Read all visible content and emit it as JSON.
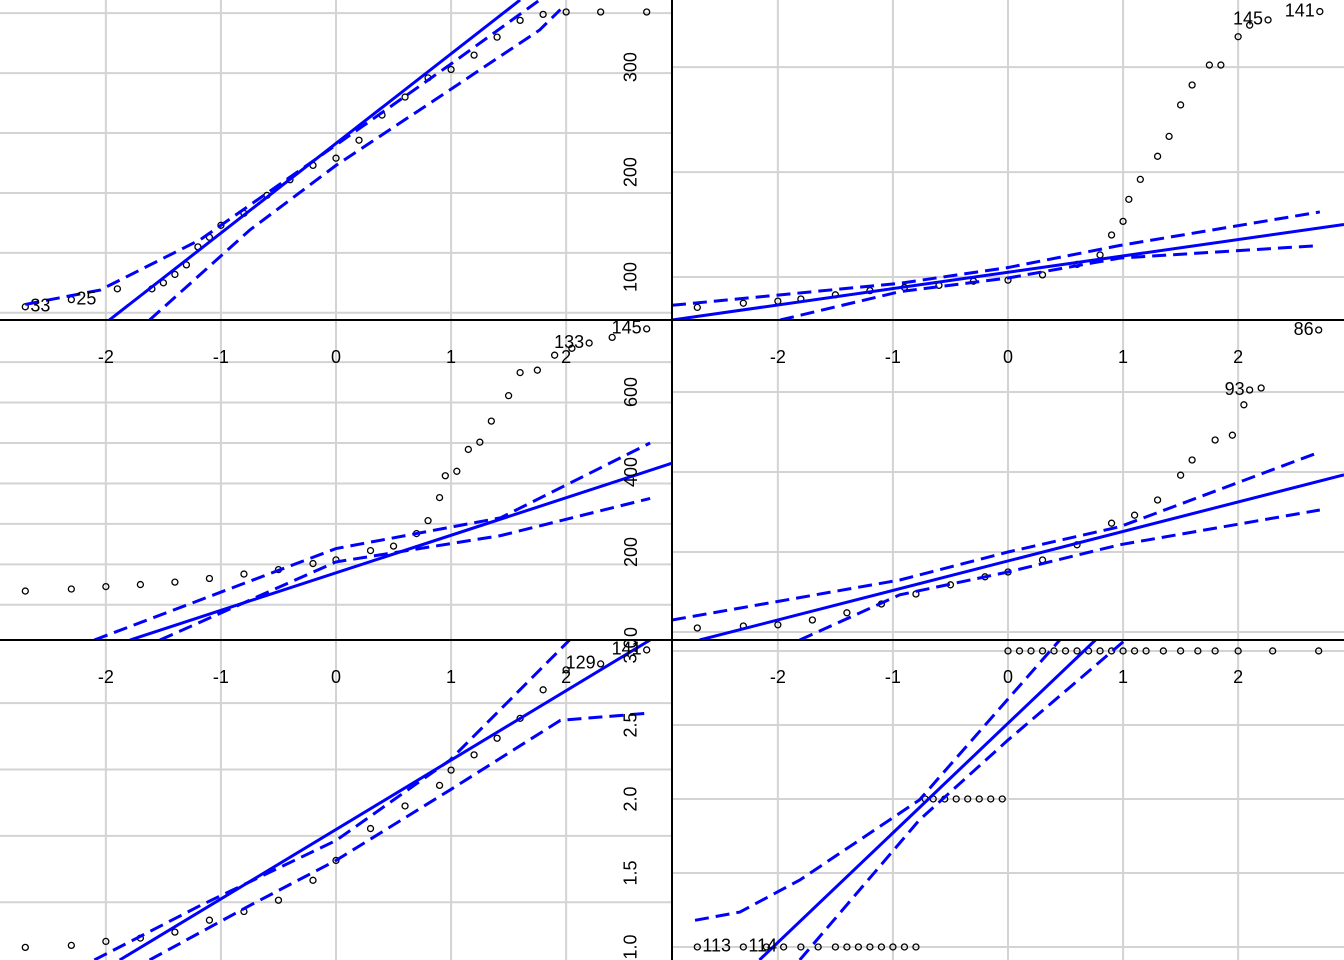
{
  "chart_data": [
    {
      "type": "qq",
      "xlim": [
        -2.92,
        2.92
      ],
      "ylim": [
        44,
        311
      ],
      "xticks": [
        -2,
        -1,
        0,
        1,
        2
      ],
      "yticks": [
        50,
        100,
        150,
        200,
        250,
        300
      ],
      "show_xtick_labels": true,
      "show_ytick_labels": false,
      "grid": true,
      "point_color": "#000000",
      "line_color": "#0000ff",
      "x": [
        -2.7,
        -2.3,
        -1.9,
        -1.6,
        -1.5,
        -1.4,
        -1.3,
        -1.2,
        -1.1,
        -1.0,
        -0.8,
        -0.6,
        -0.4,
        -0.2,
        0,
        0.2,
        0.4,
        0.6,
        0.8,
        1.0,
        1.2,
        1.4,
        1.6,
        1.8,
        2.0,
        2.3,
        2.7
      ],
      "values": [
        55,
        61,
        70,
        70,
        75,
        82,
        90,
        105,
        113,
        123,
        133,
        148,
        161,
        173,
        179,
        194,
        215,
        230,
        246,
        253,
        265,
        280,
        294,
        299,
        301,
        301,
        301
      ],
      "point_labels": [
        "33",
        "25",
        null,
        null,
        null,
        null,
        null,
        null,
        null,
        null,
        null,
        null,
        null,
        null,
        null,
        null,
        null,
        null,
        null,
        null,
        null,
        null,
        null,
        null,
        null,
        null,
        null
      ],
      "ref_line": {
        "x": [
          -1.97,
          1.6
        ],
        "values": [
          44,
          311
        ]
      },
      "envelope_upper": {
        "x": [
          -2.7,
          -2.05,
          -1.18,
          0,
          0.99,
          1.77
        ],
        "values": [
          57,
          69,
          111,
          190,
          257,
          311
        ]
      },
      "envelope_lower": {
        "x": [
          -1.62,
          -0.75,
          0,
          0.99,
          1.77,
          1.95
        ],
        "values": [
          44,
          119,
          173,
          236,
          286,
          303
        ]
      }
    },
    {
      "type": "qq",
      "xlim": [
        -2.92,
        2.92
      ],
      "ylim": [
        59,
        364
      ],
      "xticks": [
        -2,
        -1,
        0,
        1,
        2
      ],
      "yticks": [
        100,
        200,
        300
      ],
      "show_xtick_labels": true,
      "show_ytick_labels": true,
      "grid": true,
      "point_color": "#000000",
      "line_color": "#0000ff",
      "x": [
        -2.7,
        -2.3,
        -2.0,
        -1.8,
        -1.5,
        -1.2,
        -0.9,
        -0.6,
        -0.3,
        0,
        0.3,
        0.6,
        0.8,
        0.9,
        1.0,
        1.05,
        1.15,
        1.3,
        1.4,
        1.5,
        1.6,
        1.75,
        1.85,
        2.0,
        2.1,
        2.26,
        2.71
      ],
      "values": [
        71,
        75,
        77,
        79,
        83,
        87,
        90,
        92,
        96,
        97,
        102,
        112,
        121,
        140,
        153,
        174,
        193,
        215,
        234,
        264,
        283,
        302,
        302,
        329,
        340,
        345,
        353
      ],
      "point_labels": [
        null,
        null,
        null,
        null,
        null,
        null,
        null,
        null,
        null,
        null,
        null,
        null,
        null,
        null,
        null,
        null,
        null,
        null,
        null,
        null,
        null,
        null,
        null,
        null,
        null,
        "145",
        "141"
      ],
      "ref_line": {
        "x": [
          -2.92,
          2.92
        ],
        "values": [
          59,
          150
        ]
      },
      "envelope_upper": {
        "x": [
          -2.92,
          -0.94,
          0,
          0.97,
          2.71
        ],
        "values": [
          73,
          94,
          109,
          130,
          162
        ]
      },
      "envelope_lower": {
        "x": [
          -1.98,
          -0.94,
          0,
          0.97,
          2.71
        ],
        "values": [
          59,
          86,
          99,
          118,
          130
        ]
      }
    },
    {
      "type": "qq",
      "xlim": [
        -2.92,
        2.92
      ],
      "ylim": [
        13,
        804
      ],
      "xticks": [
        -2,
        -1,
        0,
        1,
        2
      ],
      "yticks": [
        100,
        200,
        300,
        400,
        500,
        600,
        700
      ],
      "show_xtick_labels": true,
      "show_ytick_labels": false,
      "grid": true,
      "point_color": "#000000",
      "line_color": "#0000ff",
      "x": [
        -2.7,
        -2.3,
        -2.0,
        -1.7,
        -1.4,
        -1.1,
        -0.8,
        -0.5,
        -0.2,
        0,
        0.3,
        0.5,
        0.7,
        0.8,
        0.9,
        0.95,
        1.05,
        1.15,
        1.25,
        1.35,
        1.5,
        1.6,
        1.75,
        1.9,
        2.05,
        2.2,
        2.4,
        2.7
      ],
      "values": [
        134,
        139,
        145,
        150,
        156,
        165,
        176,
        187,
        202,
        211,
        234,
        245,
        276,
        308,
        365,
        419,
        430,
        484,
        502,
        554,
        617,
        674,
        680,
        717,
        734,
        747,
        761,
        782
      ],
      "point_labels": [
        null,
        null,
        null,
        null,
        null,
        null,
        null,
        null,
        null,
        null,
        null,
        null,
        null,
        null,
        null,
        null,
        null,
        null,
        null,
        null,
        null,
        null,
        null,
        null,
        null,
        "133",
        null,
        "145"
      ],
      "ref_line": {
        "x": [
          -1.79,
          2.92
        ],
        "values": [
          13,
          450
        ]
      },
      "envelope_upper": {
        "x": [
          -2.1,
          0,
          1.43,
          2.73
        ],
        "values": [
          13,
          239,
          315,
          500
        ]
      },
      "envelope_lower": {
        "x": [
          -1.53,
          0,
          1.43,
          2.73
        ],
        "values": [
          13,
          206,
          271,
          363
        ]
      }
    },
    {
      "type": "qq",
      "xlim": [
        -2.92,
        2.92
      ],
      "ylim": [
        -20,
        780
      ],
      "xticks": [
        -2,
        -1,
        0,
        1,
        2
      ],
      "yticks": [
        0,
        200,
        400,
        600
      ],
      "show_xtick_labels": true,
      "show_ytick_labels": true,
      "grid": true,
      "point_color": "#000000",
      "line_color": "#0000ff",
      "x": [
        -2.7,
        -2.3,
        -2.0,
        -1.7,
        -1.4,
        -1.1,
        -0.8,
        -0.5,
        -0.2,
        0,
        0.3,
        0.6,
        0.9,
        1.1,
        1.3,
        1.5,
        1.6,
        1.8,
        1.95,
        2.05,
        2.1,
        2.2,
        2.7
      ],
      "values": [
        10,
        15,
        18,
        30,
        48,
        70,
        95,
        118,
        138,
        150,
        180,
        218,
        272,
        292,
        330,
        392,
        430,
        480,
        492,
        568,
        605,
        610,
        755
      ],
      "point_labels": [
        null,
        null,
        null,
        null,
        null,
        null,
        null,
        null,
        null,
        null,
        null,
        null,
        null,
        null,
        null,
        null,
        null,
        null,
        null,
        null,
        "93",
        null,
        "86"
      ],
      "ref_line": {
        "x": [
          -2.68,
          2.92
        ],
        "values": [
          -20,
          393
        ]
      },
      "envelope_upper": {
        "x": [
          -2.92,
          -0.94,
          0,
          0.97,
          2.71
        ],
        "values": [
          30,
          130,
          200,
          263,
          450
        ]
      },
      "envelope_lower": {
        "x": [
          -1.81,
          -0.94,
          0,
          0.97,
          2.71
        ],
        "values": [
          -20,
          93,
          150,
          218,
          305
        ]
      }
    },
    {
      "type": "qq",
      "xlim": [
        -2.92,
        2.92
      ],
      "ylim": [
        4.13,
        8.95
      ],
      "xticks": [
        -2,
        -1,
        0,
        1,
        2
      ],
      "yticks": [
        5,
        6,
        7,
        8
      ],
      "show_xtick_labels": false,
      "show_ytick_labels": false,
      "grid": true,
      "point_color": "#000000",
      "line_color": "#0000ff",
      "x": [
        -2.7,
        -2.3,
        -2.0,
        -1.7,
        -1.4,
        -1.1,
        -0.8,
        -0.5,
        -0.2,
        0,
        0.3,
        0.6,
        0.9,
        1.0,
        1.2,
        1.4,
        1.6,
        1.8,
        2.0,
        2.3,
        2.7
      ],
      "values": [
        4.32,
        4.35,
        4.41,
        4.46,
        4.55,
        4.73,
        4.86,
        5.03,
        5.33,
        5.63,
        6.11,
        6.45,
        6.76,
        6.99,
        7.22,
        7.47,
        7.77,
        8.2,
        8.5,
        8.59,
        8.8
      ],
      "point_labels": [
        null,
        null,
        null,
        null,
        null,
        null,
        null,
        null,
        null,
        null,
        null,
        null,
        null,
        null,
        null,
        null,
        null,
        null,
        null,
        "129",
        "141"
      ],
      "ref_line": {
        "x": [
          -1.88,
          2.73
        ],
        "values": [
          4.13,
          8.95
        ]
      },
      "envelope_upper": {
        "x": [
          -2.1,
          -1.18,
          0,
          0.99,
          2.03
        ],
        "values": [
          4.13,
          4.95,
          5.93,
          7.14,
          8.95
        ]
      },
      "envelope_lower": {
        "x": [
          -1.62,
          -0.75,
          0,
          0.99,
          1.95,
          2.73
        ],
        "values": [
          4.13,
          4.95,
          5.63,
          6.69,
          7.74,
          7.85
        ]
      }
    },
    {
      "type": "qq",
      "xlim": [
        -2.92,
        2.92
      ],
      "ylim": [
        0.912,
        3.074
      ],
      "xticks": [
        -2,
        -1,
        0,
        1,
        2
      ],
      "yticks": [
        {
          "value": 1,
          "label": "1.0"
        },
        {
          "value": 1.5,
          "label": "1.5"
        },
        {
          "value": 2,
          "label": "2.0"
        },
        {
          "value": 2.5,
          "label": "2.5"
        },
        {
          "value": 3,
          "label": "3.0"
        }
      ],
      "show_xtick_labels": false,
      "show_ytick_labels": true,
      "grid": true,
      "point_color": "#000000",
      "line_color": "#0000ff",
      "x": [
        -2.7,
        -2.3,
        -2.1,
        -1.95,
        -1.8,
        -1.65,
        -1.5,
        -1.4,
        -1.3,
        -1.2,
        -1.1,
        -1.0,
        -0.9,
        -0.8,
        -0.72,
        -0.65,
        -0.55,
        -0.45,
        -0.35,
        -0.25,
        -0.15,
        -0.05,
        0,
        0.1,
        0.2,
        0.3,
        0.4,
        0.5,
        0.6,
        0.7,
        0.8,
        0.9,
        1.0,
        1.1,
        1.2,
        1.35,
        1.5,
        1.65,
        1.8,
        2.0,
        2.3,
        2.7
      ],
      "values": [
        1,
        1,
        1,
        1,
        1,
        1,
        1,
        1,
        1,
        1,
        1,
        1,
        1,
        1,
        2,
        2,
        2,
        2,
        2,
        2,
        2,
        2,
        3,
        3,
        3,
        3,
        3,
        3,
        3,
        3,
        3,
        3,
        3,
        3,
        3,
        3,
        3,
        3,
        3,
        3,
        3,
        3
      ],
      "point_labels": [
        "113",
        "114",
        null,
        null,
        null,
        null,
        null,
        null,
        null,
        null,
        null,
        null,
        null,
        null,
        null,
        null,
        null,
        null,
        null,
        null,
        null,
        null,
        null,
        null,
        null,
        null,
        null,
        null,
        null,
        null,
        null,
        null,
        null,
        null,
        null,
        null,
        null,
        null,
        null,
        null,
        null,
        null
      ],
      "ref_line": {
        "x": [
          -2.16,
          0.76
        ],
        "values": [
          0.912,
          3.074
        ]
      },
      "envelope_upper": {
        "x": [
          -2.72,
          -2.33,
          -1.81,
          -0.77,
          0.45
        ],
        "values": [
          1.18,
          1.236,
          1.452,
          1.993,
          3.074
        ]
      },
      "envelope_lower": {
        "x": [
          -1.81,
          -0.77,
          0,
          1.02
        ],
        "values": [
          0.912,
          1.858,
          2.398,
          3.074
        ]
      }
    }
  ]
}
